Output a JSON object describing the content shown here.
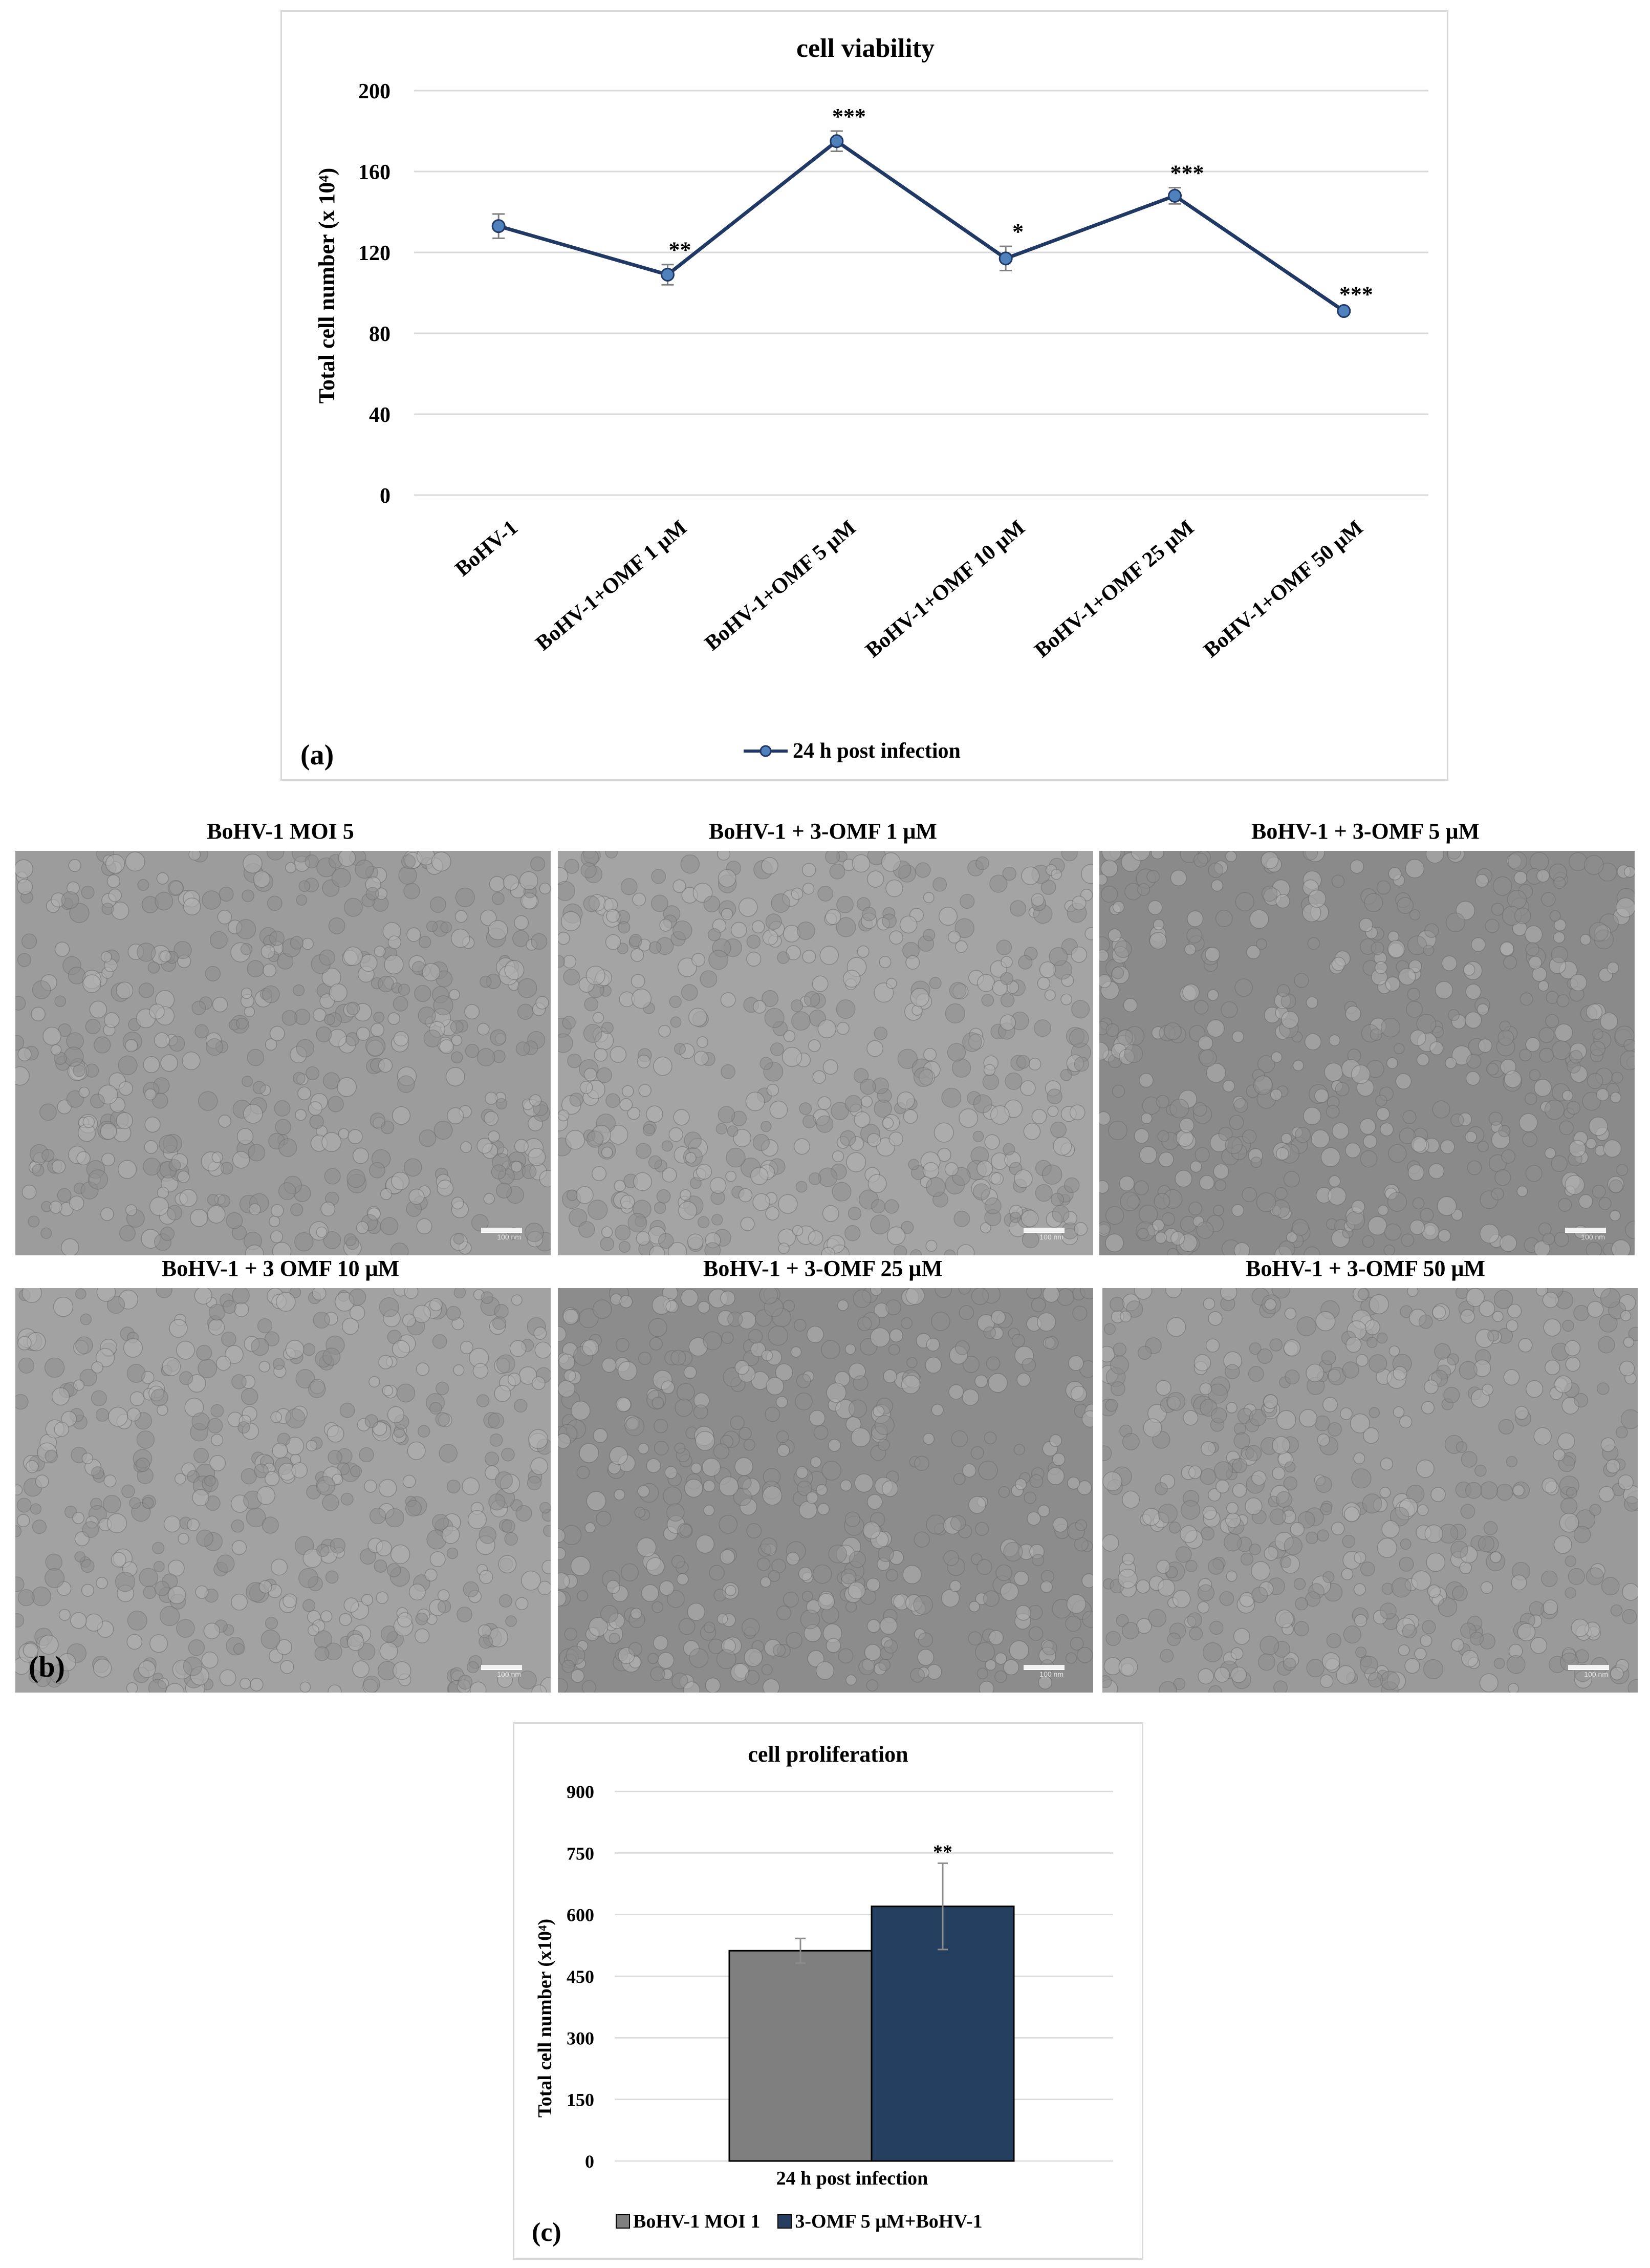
{
  "chart_data": [
    {
      "id": "a",
      "type": "line",
      "title": "cell viability",
      "xlabel": "",
      "ylabel": "Total cell number (x 10⁴)",
      "ylim": [
        0,
        200
      ],
      "yticks": [
        0,
        40,
        80,
        120,
        160,
        200
      ],
      "categories": [
        "BoHV-1",
        "BoHV-1+OMF 1 μM",
        "BoHV-1+OMF 5 μM",
        "BoHV-1+OMF 10 μM",
        "BoHV-1+OMF 25 μM",
        "BoHV-1+OMF 50 μM"
      ],
      "series": [
        {
          "name": "24 h post infection",
          "values": [
            133,
            109,
            175,
            117,
            148,
            91
          ],
          "errors": [
            6,
            5,
            5,
            6,
            4,
            1
          ],
          "significance": [
            "",
            "**",
            "***",
            "*",
            "***",
            "***"
          ]
        }
      ],
      "grid": true,
      "legend": "bottom",
      "panel_label": "(a)"
    },
    {
      "id": "c",
      "type": "bar",
      "title": "cell proliferation",
      "xlabel": "24 h post infection",
      "ylabel": "Total cell number (x10⁴)",
      "ylim": [
        0,
        900
      ],
      "yticks": [
        0,
        150,
        300,
        450,
        600,
        750,
        900
      ],
      "categories": [
        "24 h post infection"
      ],
      "series": [
        {
          "name": "BoHV-1 MOI 1",
          "values": [
            512
          ],
          "errors": [
            30
          ],
          "significance": "",
          "color": "#7f7f7f"
        },
        {
          "name": "3-OMF 5 μM+BoHV-1",
          "values": [
            620
          ],
          "errors": [
            105
          ],
          "significance": "**",
          "color": "#243f60"
        }
      ],
      "grid": true,
      "legend": "bottom",
      "panel_label": "(c)"
    }
  ],
  "micrographs": {
    "panel_label": "(b)",
    "titles": [
      "BoHV-1 MOI 5",
      "BoHV-1 + 3-OMF 1 μM",
      "BoHV-1 + 3-OMF 5 μM",
      "BoHV-1 + 3 OMF 10 μM",
      "BoHV-1 + 3-OMF 25 μM",
      "BoHV-1 + 3-OMF 50 μM"
    ],
    "scale_label": "100 nm"
  },
  "colors": {
    "line": "#203864",
    "marker": "#4f81bd",
    "bar1": "#7f7f7f",
    "bar2": "#243f60",
    "grid": "#d9d9d9"
  }
}
